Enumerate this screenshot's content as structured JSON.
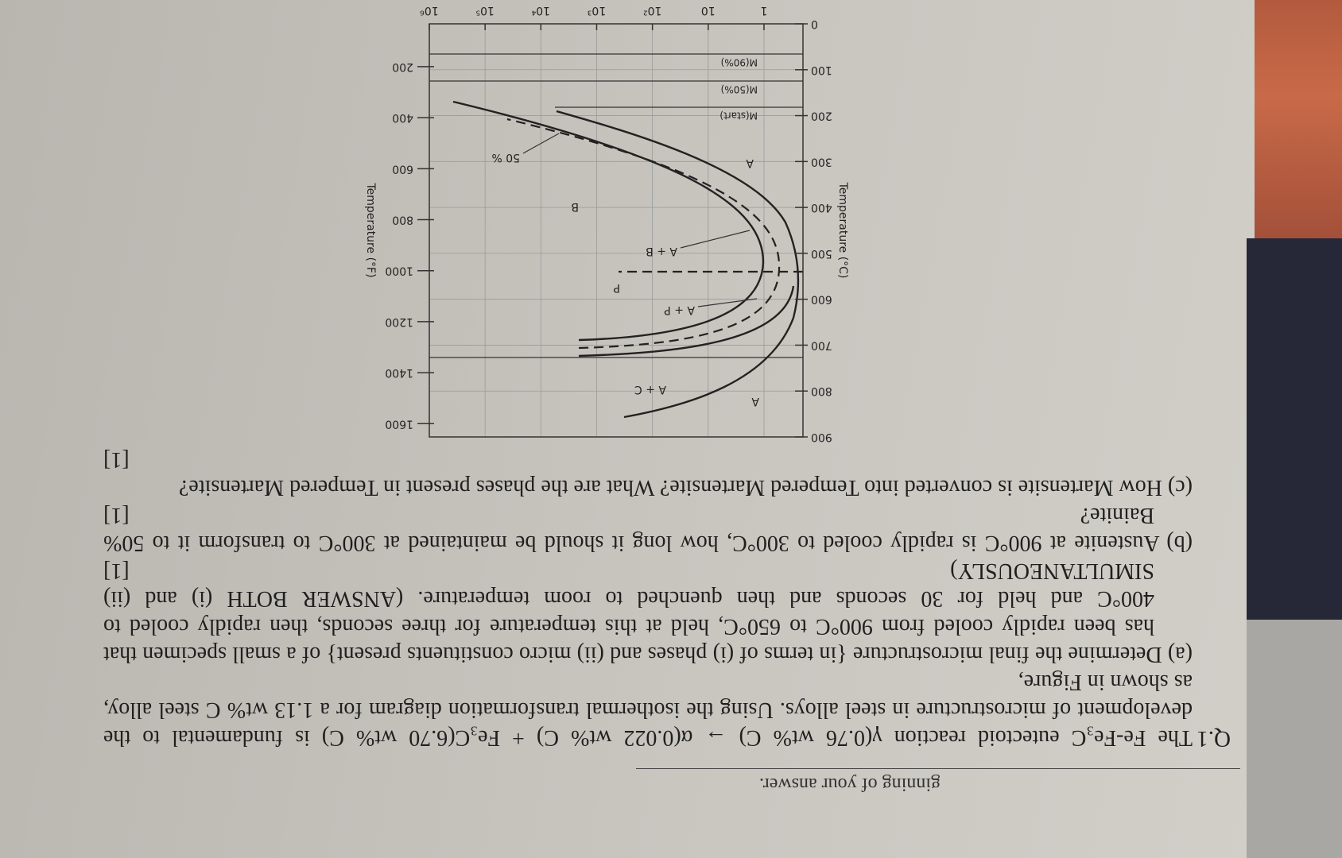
{
  "header": {
    "fragment": "ginning of your answer."
  },
  "question": {
    "number": "Q.1",
    "intro": "The Fe-Fe₃C eutectoid reaction γ(0.76 wt% C) → α(0.022 wt% C) + Fe₃C(6.70 wt% C) is fundamental to the development of microstructure in steel alloys. Using the isothermal transformation diagram for a 1.13 wt% C steel alloy, as shown in Figure,",
    "parts": [
      {
        "label": "(a)",
        "text": "Determine the final microstructure {in terms of (i) phases and (ii) micro constituents present} of a small specimen that has been rapidly cooled from 900°C to 650°C, held at this temperature for three seconds, then rapidly cooled to 400°C and held for 30 seconds and then quenched to room temperature. (ANSWER BOTH (i) and (ii) SIMULTANEOUSLY)",
        "marks": "[1]"
      },
      {
        "label": "(b)",
        "text": "Austenite at 900°C is rapidly cooled to 300°C, how long it should be maintained at 300°C to transform it to 50% Bainite?",
        "marks": "[1]"
      },
      {
        "label": "(c)",
        "text": "How Martensite is converted into Tempered Martensite? What are the phases present in Tempered Martensite?",
        "marks": "[1]"
      }
    ]
  },
  "figure": {
    "y_label": "Temperature (°C)",
    "ylim": [
      0,
      900
    ],
    "yticks": [
      0,
      100,
      200,
      300,
      400,
      500,
      600,
      700,
      800,
      900
    ],
    "y2_label": "Temperature (°F)",
    "y2lim": [
      32,
      1652
    ],
    "y2ticks": [
      200,
      400,
      600,
      800,
      1000,
      1200,
      1400,
      1600
    ],
    "xscale": "log",
    "xlim": [
      0.2,
      1000000
    ],
    "xticks": [
      1,
      10,
      {
        "value": 100,
        "label": "10²"
      },
      {
        "value": 1000,
        "label": "10³"
      },
      {
        "value": 10000,
        "label": "10⁴"
      },
      {
        "value": 100000,
        "label": "10⁵"
      },
      {
        "value": 1000000,
        "label": "10⁶"
      }
    ],
    "grid": true,
    "region_labels": [
      "A",
      "A + C",
      "A + P",
      "P",
      "A + B",
      "B",
      "A",
      "50 %",
      "M(start)",
      "M(50%)",
      "M(90%)"
    ]
  }
}
